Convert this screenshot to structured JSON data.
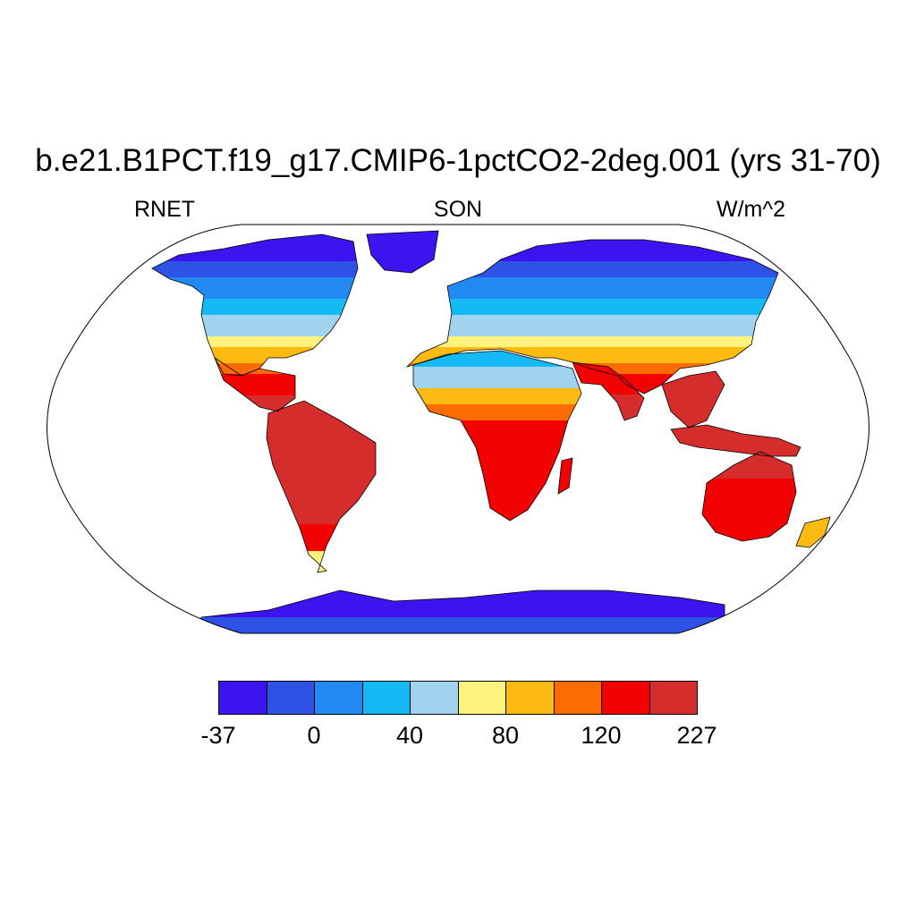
{
  "header": {
    "title": "b.e21.B1PCT.f19_g17.CMIP6-1pctCO2-2deg.001 (yrs 31-70)",
    "left": "RNET",
    "center": "SON",
    "right": "W/m^2"
  },
  "colorbar": {
    "colors": [
      "#3b14f0",
      "#2f52e6",
      "#2389f2",
      "#15b9f3",
      "#a1d2ee",
      "#fff37e",
      "#fdba11",
      "#fc6c02",
      "#f20200",
      "#d52c2c"
    ],
    "labels": [
      "-37",
      "0",
      "40",
      "80",
      "120",
      "227"
    ]
  },
  "map": {
    "projection": "robinson",
    "ocean": "#ffffff",
    "coastline": "#000000"
  }
}
